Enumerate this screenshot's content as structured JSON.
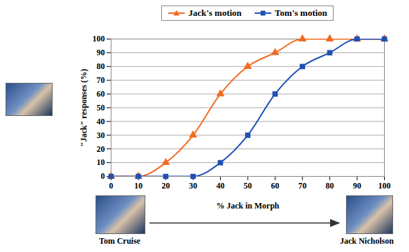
{
  "chart_data": {
    "type": "line",
    "xlabel": "% Jack in Morph",
    "ylabel": "\"Jack\" responses (%)",
    "annotations": [
      "Tom Cruise",
      "Jack Nicholson"
    ],
    "x": [
      0,
      10,
      20,
      30,
      40,
      50,
      60,
      70,
      80,
      90,
      100
    ],
    "series": [
      {
        "name": "Jack's motion",
        "color": "#f26b21",
        "marker": "triangle",
        "line_style": "solid",
        "values": [
          0,
          0,
          10,
          30,
          60,
          80,
          90,
          100,
          100,
          100,
          100
        ]
      },
      {
        "name": "Tom's motion",
        "color": "#1f4fb5",
        "marker": "square",
        "line_style": "solid",
        "values": [
          0,
          0,
          0,
          0,
          10,
          30,
          60,
          80,
          90,
          100,
          100
        ]
      }
    ],
    "xlim": [
      0,
      100
    ],
    "xticks": [
      0,
      10,
      20,
      30,
      40,
      50,
      60,
      70,
      80,
      90,
      100
    ],
    "ylim": [
      0,
      100
    ],
    "yticks": [
      0,
      10,
      20,
      30,
      40,
      50,
      60,
      70,
      80,
      90,
      100
    ],
    "grid": true,
    "legend": "top"
  }
}
